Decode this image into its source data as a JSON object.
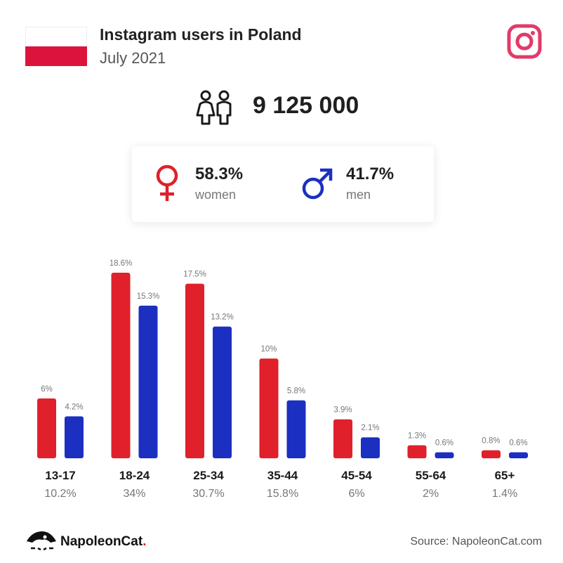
{
  "header": {
    "title": "Instagram users in Poland",
    "subtitle": "July 2021"
  },
  "total_users": "9 125 000",
  "gender": {
    "women_pct": "58.3%",
    "women_label": "women",
    "men_pct": "41.7%",
    "men_label": "men"
  },
  "colors": {
    "women": "#e0202a",
    "men": "#1b2fc1",
    "instagram": "#e23a67",
    "flag_red": "#dc143c"
  },
  "icons": [
    "poland-flag-icon",
    "instagram-icon",
    "people-icon",
    "female-symbol-icon",
    "male-symbol-icon",
    "napoleoncat-logo-icon"
  ],
  "chart_data": {
    "type": "bar",
    "categories": [
      "13-17",
      "18-24",
      "25-34",
      "35-44",
      "45-54",
      "55-64",
      "65+"
    ],
    "category_totals": [
      "10.2%",
      "34%",
      "30.7%",
      "15.8%",
      "6%",
      "2%",
      "1.4%"
    ],
    "series": [
      {
        "values": [
          6,
          18.6,
          17.5,
          10,
          3.9,
          1.3,
          0.8
        ],
        "labels": [
          "6%",
          "18.6%",
          "17.5%",
          "10%",
          "3.9%",
          "1.3%",
          "0.8%"
        ],
        "color": "#e0202a"
      },
      {
        "values": [
          4.2,
          15.3,
          13.2,
          5.8,
          2.1,
          0.6,
          0.6
        ],
        "labels": [
          "4.2%",
          "15.3%",
          "13.2%",
          "5.8%",
          "2.1%",
          "0.6%",
          "0.6%"
        ],
        "color": "#1b2fc1"
      }
    ],
    "ylim": [
      0,
      18.6
    ],
    "grid": false
  },
  "footer": {
    "brand_name": "NapoleonCat",
    "brand_dot": ".",
    "source": "Source: NapoleonCat.com"
  }
}
